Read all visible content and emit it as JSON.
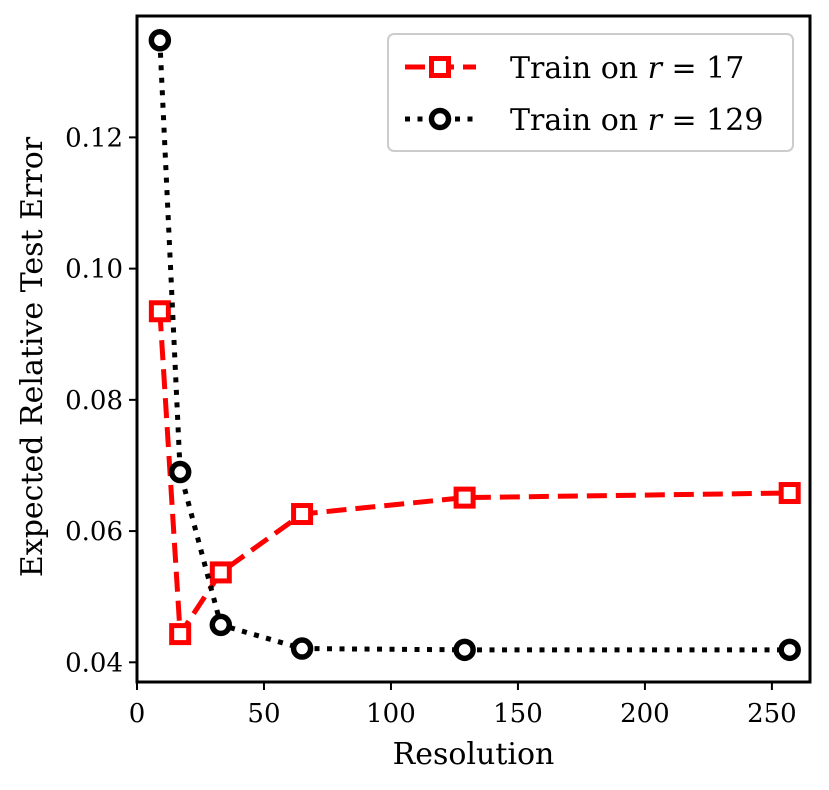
{
  "chart_data": {
    "type": "line",
    "title": "",
    "xlabel": "Resolution",
    "ylabel": "Expected Relative Test Error",
    "xlim": [
      0,
      265
    ],
    "ylim": [
      0.037,
      0.1385
    ],
    "xticks": [
      0,
      50,
      100,
      150,
      200,
      250
    ],
    "yticks": [
      0.04,
      0.06,
      0.08,
      0.1,
      0.12
    ],
    "ytick_labels": [
      "0.04",
      "0.06",
      "0.08",
      "0.10",
      "0.12"
    ],
    "grid": false,
    "legend_position": "top-right",
    "series": [
      {
        "name": "Train on r = 17",
        "name_prefix": "Train on ",
        "name_var": "r",
        "name_suffix": " = 17",
        "color": "#ff0000",
        "line_style": "dashed",
        "marker": "square",
        "x": [
          9,
          17,
          33,
          65,
          129,
          257
        ],
        "y": [
          0.0935,
          0.0443,
          0.0537,
          0.0626,
          0.0651,
          0.0658
        ]
      },
      {
        "name": "Train on r = 129",
        "name_prefix": "Train on ",
        "name_var": "r",
        "name_suffix": " = 129",
        "color": "#000000",
        "line_style": "dotted",
        "marker": "circle",
        "x": [
          9,
          17,
          33,
          65,
          129,
          257
        ],
        "y": [
          0.1348,
          0.069,
          0.0457,
          0.0421,
          0.0419,
          0.0419
        ]
      }
    ]
  }
}
